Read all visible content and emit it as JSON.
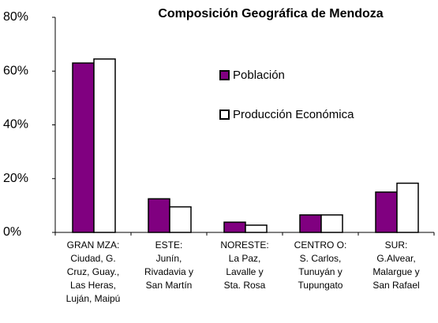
{
  "chart_data": {
    "type": "bar",
    "title": "Composición Geográfica de Mendoza",
    "categories": [
      "GRAN MZA:\nCiudad, G.\nCruz, Guay.,\nLas Heras,\nLuján, Maipú",
      "ESTE:\nJunín,\nRivadavia y\nSan Martín",
      "NORESTE:\nLa Paz,\nLavalle y\nSta. Rosa",
      "CENTRO O:\nS. Carlos,\nTunuyán y\nTupungato",
      "SUR:\nG.Alvear,\nMalargue y\nSan Rafael"
    ],
    "series": [
      {
        "name": "Población",
        "color": "#800080",
        "values": [
          63,
          12.5,
          3.8,
          6.5,
          15
        ]
      },
      {
        "name": "Producción Económica",
        "color": "#ffffff",
        "values": [
          64.5,
          9.5,
          2.7,
          6.5,
          18.3
        ]
      }
    ],
    "ylim": [
      0,
      80
    ],
    "yticks": [
      {
        "value": 0,
        "label": "0%"
      },
      {
        "value": 20,
        "label": "20%"
      },
      {
        "value": 40,
        "label": "40%"
      },
      {
        "value": 60,
        "label": "60%"
      },
      {
        "value": 80,
        "label": "80%"
      }
    ]
  }
}
